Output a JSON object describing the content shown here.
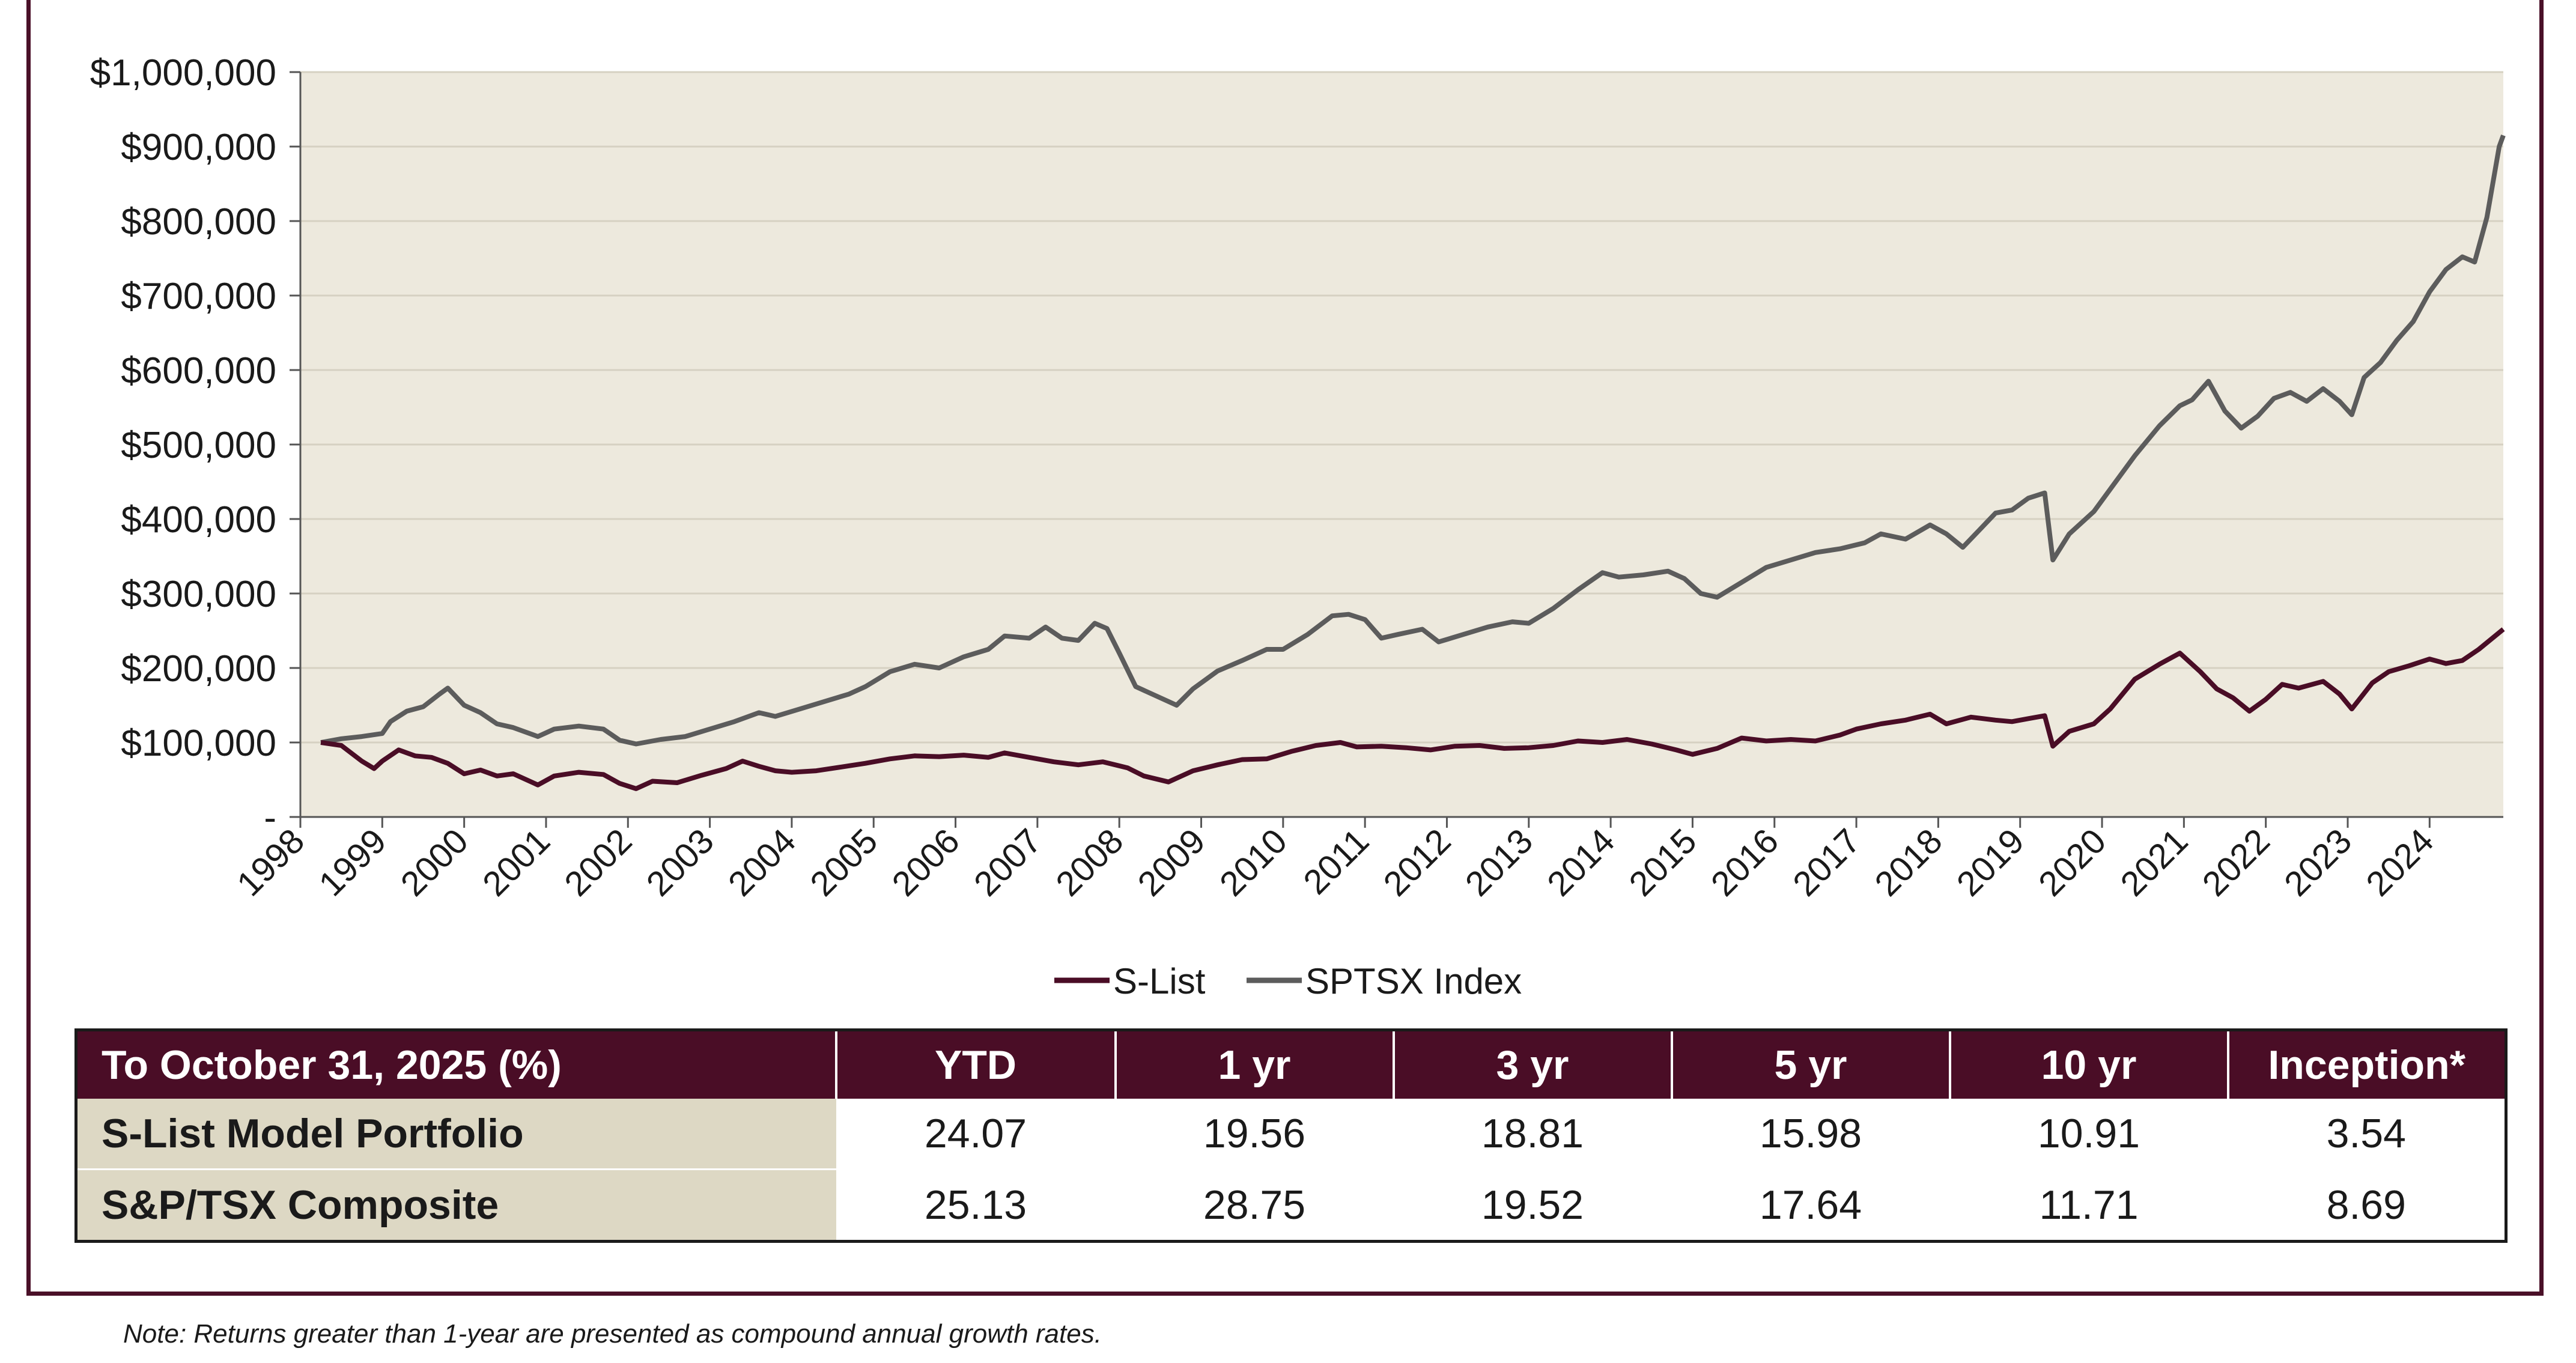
{
  "chart_data": {
    "type": "line",
    "title": "",
    "xlabel": "",
    "ylabel": "",
    "ylim": [
      0,
      1000000
    ],
    "y_ticks": [
      {
        "value": 0,
        "label": "-"
      },
      {
        "value": 100000,
        "label": "$100,000"
      },
      {
        "value": 200000,
        "label": "$200,000"
      },
      {
        "value": 300000,
        "label": "$300,000"
      },
      {
        "value": 400000,
        "label": "$400,000"
      },
      {
        "value": 500000,
        "label": "$500,000"
      },
      {
        "value": 600000,
        "label": "$600,000"
      },
      {
        "value": 700000,
        "label": "$700,000"
      },
      {
        "value": 800000,
        "label": "$800,000"
      },
      {
        "value": 900000,
        "label": "$900,000"
      },
      {
        "value": 1000000,
        "label": "$1,000,000"
      }
    ],
    "x_ticks": [
      "1998",
      "1999",
      "2000",
      "2001",
      "2002",
      "2003",
      "2004",
      "2005",
      "2006",
      "2007",
      "2008",
      "2009",
      "2010",
      "2011",
      "2012",
      "2013",
      "2014",
      "2015",
      "2016",
      "2017",
      "2018",
      "2019",
      "2020",
      "2021",
      "2022",
      "2023",
      "2024"
    ],
    "xlim": [
      1998,
      2024.9
    ],
    "grid": true,
    "legend_position": "bottom",
    "series": [
      {
        "name": "S-List",
        "color": "#4a0d26",
        "points": [
          [
            1998.25,
            100000
          ],
          [
            1998.5,
            96000
          ],
          [
            1998.75,
            75000
          ],
          [
            1998.9,
            65000
          ],
          [
            1999.0,
            75000
          ],
          [
            1999.2,
            90000
          ],
          [
            1999.4,
            82000
          ],
          [
            1999.6,
            80000
          ],
          [
            1999.8,
            72000
          ],
          [
            2000.0,
            58000
          ],
          [
            2000.2,
            63000
          ],
          [
            2000.4,
            55000
          ],
          [
            2000.6,
            58000
          ],
          [
            2000.9,
            43000
          ],
          [
            2001.1,
            55000
          ],
          [
            2001.4,
            60000
          ],
          [
            2001.7,
            57000
          ],
          [
            2001.9,
            45000
          ],
          [
            2002.1,
            38000
          ],
          [
            2002.3,
            48000
          ],
          [
            2002.6,
            46000
          ],
          [
            2002.9,
            56000
          ],
          [
            2003.2,
            65000
          ],
          [
            2003.4,
            75000
          ],
          [
            2003.6,
            68000
          ],
          [
            2003.8,
            62000
          ],
          [
            2004.0,
            60000
          ],
          [
            2004.3,
            62000
          ],
          [
            2004.6,
            67000
          ],
          [
            2004.9,
            72000
          ],
          [
            2005.2,
            78000
          ],
          [
            2005.5,
            82000
          ],
          [
            2005.8,
            81000
          ],
          [
            2006.1,
            83000
          ],
          [
            2006.4,
            80000
          ],
          [
            2006.6,
            86000
          ],
          [
            2006.9,
            80000
          ],
          [
            2007.2,
            74000
          ],
          [
            2007.5,
            70000
          ],
          [
            2007.8,
            74000
          ],
          [
            2008.1,
            66000
          ],
          [
            2008.3,
            55000
          ],
          [
            2008.6,
            47000
          ],
          [
            2008.9,
            62000
          ],
          [
            2009.2,
            70000
          ],
          [
            2009.5,
            77000
          ],
          [
            2009.8,
            78000
          ],
          [
            2010.1,
            88000
          ],
          [
            2010.4,
            96000
          ],
          [
            2010.7,
            100000
          ],
          [
            2010.9,
            94000
          ],
          [
            2011.2,
            95000
          ],
          [
            2011.5,
            93000
          ],
          [
            2011.8,
            90000
          ],
          [
            2012.1,
            95000
          ],
          [
            2012.4,
            96000
          ],
          [
            2012.7,
            92000
          ],
          [
            2013.0,
            93000
          ],
          [
            2013.3,
            96000
          ],
          [
            2013.6,
            102000
          ],
          [
            2013.9,
            100000
          ],
          [
            2014.2,
            104000
          ],
          [
            2014.5,
            98000
          ],
          [
            2014.8,
            90000
          ],
          [
            2015.0,
            84000
          ],
          [
            2015.3,
            92000
          ],
          [
            2015.6,
            106000
          ],
          [
            2015.9,
            102000
          ],
          [
            2016.2,
            104000
          ],
          [
            2016.5,
            102000
          ],
          [
            2016.8,
            110000
          ],
          [
            2017.0,
            118000
          ],
          [
            2017.3,
            125000
          ],
          [
            2017.6,
            130000
          ],
          [
            2017.9,
            138000
          ],
          [
            2018.1,
            125000
          ],
          [
            2018.4,
            134000
          ],
          [
            2018.7,
            130000
          ],
          [
            2018.9,
            128000
          ],
          [
            2019.1,
            132000
          ],
          [
            2019.3,
            136000
          ],
          [
            2019.4,
            95000
          ],
          [
            2019.6,
            115000
          ],
          [
            2019.9,
            125000
          ],
          [
            2020.1,
            145000
          ],
          [
            2020.4,
            185000
          ],
          [
            2020.7,
            205000
          ],
          [
            2020.95,
            220000
          ],
          [
            2021.2,
            195000
          ],
          [
            2021.4,
            172000
          ],
          [
            2021.6,
            160000
          ],
          [
            2021.8,
            142000
          ],
          [
            2022.0,
            158000
          ],
          [
            2022.2,
            178000
          ],
          [
            2022.4,
            173000
          ],
          [
            2022.7,
            182000
          ],
          [
            2022.9,
            165000
          ],
          [
            2023.05,
            145000
          ],
          [
            2023.3,
            180000
          ],
          [
            2023.5,
            195000
          ],
          [
            2023.75,
            203000
          ],
          [
            2024.0,
            212000
          ],
          [
            2024.2,
            206000
          ],
          [
            2024.4,
            210000
          ],
          [
            2024.6,
            225000
          ],
          [
            2024.9,
            252000
          ]
        ]
      },
      {
        "name": "SPTSX Index",
        "color": "#5c5c5c",
        "points": [
          [
            1998.25,
            100000
          ],
          [
            1998.5,
            105000
          ],
          [
            1998.75,
            108000
          ],
          [
            1999.0,
            112000
          ],
          [
            1999.1,
            128000
          ],
          [
            1999.3,
            142000
          ],
          [
            1999.5,
            148000
          ],
          [
            1999.7,
            165000
          ],
          [
            1999.8,
            173000
          ],
          [
            2000.0,
            150000
          ],
          [
            2000.2,
            140000
          ],
          [
            2000.4,
            125000
          ],
          [
            2000.6,
            120000
          ],
          [
            2000.9,
            108000
          ],
          [
            2001.1,
            118000
          ],
          [
            2001.4,
            122000
          ],
          [
            2001.7,
            118000
          ],
          [
            2001.9,
            103000
          ],
          [
            2002.1,
            98000
          ],
          [
            2002.4,
            104000
          ],
          [
            2002.7,
            108000
          ],
          [
            2003.0,
            118000
          ],
          [
            2003.3,
            128000
          ],
          [
            2003.6,
            140000
          ],
          [
            2003.8,
            135000
          ],
          [
            2004.1,
            145000
          ],
          [
            2004.4,
            155000
          ],
          [
            2004.7,
            165000
          ],
          [
            2004.9,
            175000
          ],
          [
            2005.2,
            195000
          ],
          [
            2005.5,
            205000
          ],
          [
            2005.8,
            200000
          ],
          [
            2006.1,
            215000
          ],
          [
            2006.4,
            225000
          ],
          [
            2006.6,
            243000
          ],
          [
            2006.9,
            240000
          ],
          [
            2007.1,
            255000
          ],
          [
            2007.3,
            240000
          ],
          [
            2007.5,
            237000
          ],
          [
            2007.7,
            260000
          ],
          [
            2007.85,
            253000
          ],
          [
            2008.0,
            220000
          ],
          [
            2008.2,
            175000
          ],
          [
            2008.5,
            160000
          ],
          [
            2008.7,
            150000
          ],
          [
            2008.9,
            172000
          ],
          [
            2009.2,
            196000
          ],
          [
            2009.5,
            210000
          ],
          [
            2009.8,
            225000
          ],
          [
            2010.0,
            225000
          ],
          [
            2010.3,
            245000
          ],
          [
            2010.6,
            270000
          ],
          [
            2010.8,
            272000
          ],
          [
            2011.0,
            265000
          ],
          [
            2011.2,
            240000
          ],
          [
            2011.4,
            245000
          ],
          [
            2011.7,
            252000
          ],
          [
            2011.9,
            235000
          ],
          [
            2012.2,
            245000
          ],
          [
            2012.5,
            255000
          ],
          [
            2012.8,
            262000
          ],
          [
            2013.0,
            260000
          ],
          [
            2013.3,
            280000
          ],
          [
            2013.6,
            305000
          ],
          [
            2013.9,
            328000
          ],
          [
            2014.1,
            322000
          ],
          [
            2014.4,
            325000
          ],
          [
            2014.7,
            330000
          ],
          [
            2014.9,
            320000
          ],
          [
            2015.1,
            300000
          ],
          [
            2015.3,
            295000
          ],
          [
            2015.6,
            315000
          ],
          [
            2015.9,
            335000
          ],
          [
            2016.2,
            345000
          ],
          [
            2016.5,
            355000
          ],
          [
            2016.8,
            360000
          ],
          [
            2017.1,
            368000
          ],
          [
            2017.3,
            380000
          ],
          [
            2017.6,
            373000
          ],
          [
            2017.9,
            392000
          ],
          [
            2018.1,
            380000
          ],
          [
            2018.3,
            362000
          ],
          [
            2018.5,
            385000
          ],
          [
            2018.7,
            408000
          ],
          [
            2018.9,
            412000
          ],
          [
            2019.1,
            428000
          ],
          [
            2019.3,
            435000
          ],
          [
            2019.4,
            345000
          ],
          [
            2019.6,
            380000
          ],
          [
            2019.9,
            410000
          ],
          [
            2020.1,
            440000
          ],
          [
            2020.4,
            485000
          ],
          [
            2020.7,
            525000
          ],
          [
            2020.95,
            552000
          ],
          [
            2021.1,
            560000
          ],
          [
            2021.3,
            585000
          ],
          [
            2021.5,
            545000
          ],
          [
            2021.7,
            522000
          ],
          [
            2021.9,
            538000
          ],
          [
            2022.1,
            562000
          ],
          [
            2022.3,
            570000
          ],
          [
            2022.5,
            558000
          ],
          [
            2022.7,
            575000
          ],
          [
            2022.9,
            558000
          ],
          [
            2023.05,
            540000
          ],
          [
            2023.2,
            590000
          ],
          [
            2023.4,
            610000
          ],
          [
            2023.6,
            640000
          ],
          [
            2023.8,
            665000
          ],
          [
            2024.0,
            705000
          ],
          [
            2024.2,
            735000
          ],
          [
            2024.4,
            752000
          ],
          [
            2024.55,
            745000
          ],
          [
            2024.7,
            805000
          ],
          [
            2024.85,
            900000
          ],
          [
            2024.9,
            915000
          ]
        ]
      }
    ]
  },
  "table": {
    "header": [
      "To October 31, 2025 (%)",
      "YTD",
      "1 yr",
      "3 yr",
      "5 yr",
      "10 yr",
      "Inception*"
    ],
    "rows": [
      {
        "label": "S-List Model Portfolio",
        "values": [
          "24.07",
          "19.56",
          "18.81",
          "15.98",
          "10.91",
          "3.54"
        ]
      },
      {
        "label": "S&P/TSX Composite",
        "values": [
          "25.13",
          "28.75",
          "19.52",
          "17.64",
          "11.71",
          "8.69"
        ]
      }
    ]
  },
  "note": "Note: Returns greater than 1-year are presented as compound annual growth rates."
}
